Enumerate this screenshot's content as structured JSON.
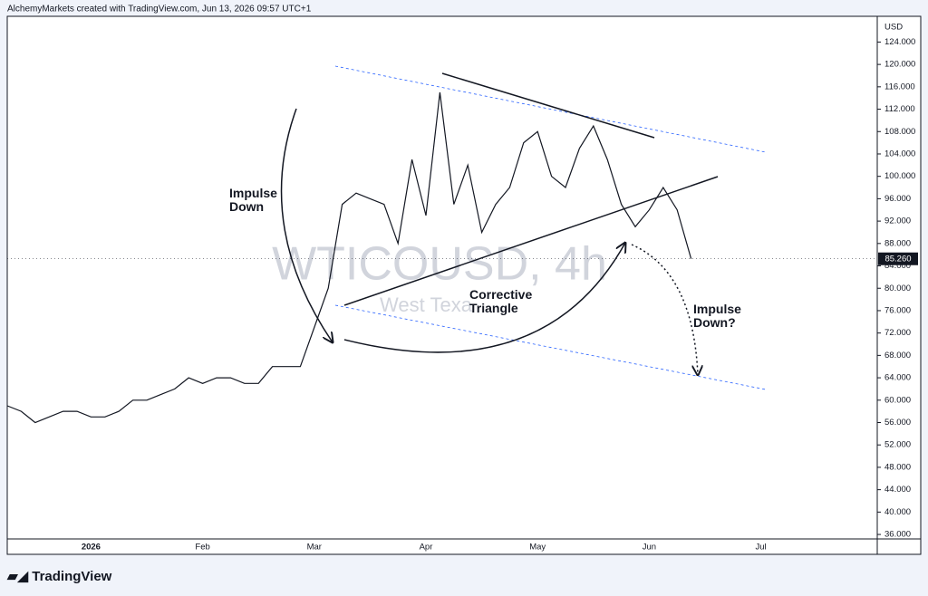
{
  "header": "AlchemyMarkets created with TradingView.com, Jun 13, 2026 09:57 UTC+1",
  "footer": "TradingView",
  "chart_data": {
    "type": "line",
    "watermark": "WTICOUSD, 4h",
    "watermark_subtitle": "West Texa",
    "y_axis_label": "USD",
    "annotations": [
      "Impulse\nDown",
      "Corrective\nTriangle",
      "Impulse\nDown?"
    ],
    "categories": [
      null,
      null,
      null,
      null,
      null,
      null,
      "2026",
      null,
      null,
      null,
      null,
      null,
      null,
      null,
      "Feb",
      null,
      null,
      null,
      null,
      null,
      null,
      null,
      "Mar",
      null,
      null,
      null,
      null,
      null,
      null,
      null,
      "Apr",
      null,
      null,
      null,
      null,
      null,
      null,
      null,
      "May",
      null,
      null,
      null,
      null,
      null,
      null,
      null,
      "Jun",
      null,
      null,
      null,
      null,
      null,
      null,
      null,
      "Jul",
      null,
      null,
      null,
      null,
      null,
      null
    ],
    "series": [
      {
        "name": "WTICOUSD",
        "color": "#131722",
        "values": [
          59,
          58,
          56,
          57,
          58,
          58,
          57,
          57,
          58,
          60,
          60,
          61,
          62,
          64,
          63,
          64,
          64,
          63,
          63,
          66,
          66,
          66,
          73,
          80,
          95,
          97,
          96,
          95,
          88,
          103,
          93,
          115,
          95,
          102,
          90,
          95,
          98,
          106,
          108,
          100,
          98,
          105,
          109,
          103,
          95,
          91,
          94,
          98,
          94,
          85.26,
          null,
          null,
          null,
          null,
          null,
          null,
          null,
          null,
          null,
          null,
          null
        ]
      }
    ],
    "last_price": {
      "value": 85.26,
      "label": "85.260"
    },
    "ylim": [
      35.2,
      128.6
    ],
    "yticks": [
      {
        "value": 36,
        "label": "36.000"
      },
      {
        "value": 40,
        "label": "40.000"
      },
      {
        "value": 44,
        "label": "44.000"
      },
      {
        "value": 48,
        "label": "48.000"
      },
      {
        "value": 52,
        "label": "52.000"
      },
      {
        "value": 56,
        "label": "56.000"
      },
      {
        "value": 60,
        "label": "60.000"
      },
      {
        "value": 64,
        "label": "64.000"
      },
      {
        "value": 68,
        "label": "68.000"
      },
      {
        "value": 72,
        "label": "72.000"
      },
      {
        "value": 76,
        "label": "76.000"
      },
      {
        "value": 80,
        "label": "80.000"
      },
      {
        "value": 84,
        "label": "84.000"
      },
      {
        "value": 88,
        "label": "88.000"
      },
      {
        "value": 92,
        "label": "92.000"
      },
      {
        "value": 96,
        "label": "96.000"
      },
      {
        "value": 100,
        "label": "100.000"
      },
      {
        "value": 104,
        "label": "104.000"
      },
      {
        "value": 108,
        "label": "108.000"
      },
      {
        "value": 112,
        "label": "112.000"
      },
      {
        "value": 116,
        "label": "116.000"
      },
      {
        "value": 120,
        "label": "120.000"
      },
      {
        "value": 124,
        "label": "124.000"
      }
    ],
    "grid": false,
    "last_price_color": "#131722"
  }
}
